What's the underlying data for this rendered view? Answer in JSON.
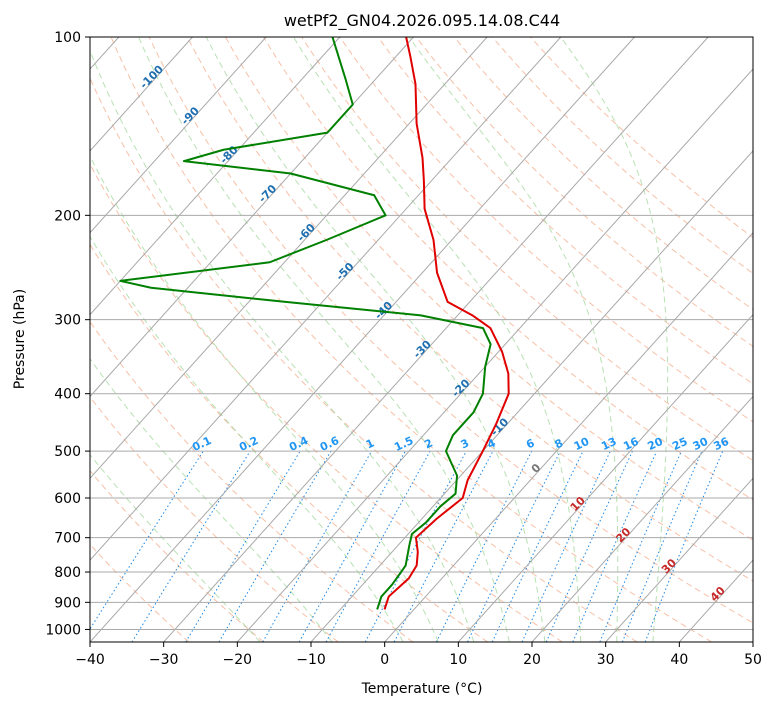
{
  "chart_data": {
    "type": "skewt",
    "title": "wetPf2_GN04.2026.095.14.08.C44",
    "xlabel": "Temperature (°C)",
    "ylabel": "Pressure (hPa)",
    "xlim": [
      -40,
      50
    ],
    "ylim": [
      1050,
      100
    ],
    "x_ticks": [
      -40,
      -30,
      -20,
      -10,
      0,
      10,
      20,
      30,
      40,
      50
    ],
    "x_tick_labels": [
      "−40",
      "−30",
      "−20",
      "−10",
      "0",
      "10",
      "20",
      "30",
      "40",
      "50"
    ],
    "y_ticks": [
      1000,
      900,
      800,
      700,
      600,
      500,
      400,
      300,
      200,
      100
    ],
    "y_tick_labels": [
      "1000",
      "900",
      "800",
      "700",
      "600",
      "500",
      "400",
      "300",
      "200",
      "100"
    ],
    "grid": true,
    "colors": {
      "temperature": "#e00000",
      "dewpoint": "#008000",
      "isotherm": "#a9a9a9",
      "dry_adiabat": "#f4a582",
      "moist_adiabat": "#a6d9a0",
      "mixing_ratio": "#1e88e5",
      "isotherm_label": "#1f6fb0",
      "red_label": "#c62828",
      "zero_label": "#777777",
      "mixing_label": "#2196f3"
    },
    "series": [
      {
        "name": "Temperature",
        "points": [
          {
            "p": 925,
            "t": -4.0
          },
          {
            "p": 880,
            "t": -5.0
          },
          {
            "p": 820,
            "t": -4.5
          },
          {
            "p": 780,
            "t": -5.0
          },
          {
            "p": 740,
            "t": -6.5
          },
          {
            "p": 700,
            "t": -8.5
          },
          {
            "p": 650,
            "t": -8.0
          },
          {
            "p": 600,
            "t": -7.0
          },
          {
            "p": 560,
            "t": -8.5
          },
          {
            "p": 500,
            "t": -10.0
          },
          {
            "p": 450,
            "t": -11.5
          },
          {
            "p": 400,
            "t": -13.5
          },
          {
            "p": 370,
            "t": -16.0
          },
          {
            "p": 340,
            "t": -19.5
          },
          {
            "p": 310,
            "t": -24.0
          },
          {
            "p": 295,
            "t": -28.0
          },
          {
            "p": 280,
            "t": -33.0
          },
          {
            "p": 250,
            "t": -38.0
          },
          {
            "p": 220,
            "t": -42.5
          },
          {
            "p": 195,
            "t": -47.5
          },
          {
            "p": 175,
            "t": -51.0
          },
          {
            "p": 160,
            "t": -54.0
          },
          {
            "p": 140,
            "t": -59.0
          },
          {
            "p": 120,
            "t": -64.0
          },
          {
            "p": 108,
            "t": -68.0
          },
          {
            "p": 100,
            "t": -71.0
          }
        ]
      },
      {
        "name": "Dewpoint",
        "points": [
          {
            "p": 925,
            "t": -5.0
          },
          {
            "p": 880,
            "t": -6.0
          },
          {
            "p": 840,
            "t": -6.0
          },
          {
            "p": 780,
            "t": -6.5
          },
          {
            "p": 720,
            "t": -8.5
          },
          {
            "p": 690,
            "t": -9.5
          },
          {
            "p": 660,
            "t": -9.0
          },
          {
            "p": 620,
            "t": -9.0
          },
          {
            "p": 590,
            "t": -8.5
          },
          {
            "p": 550,
            "t": -10.5
          },
          {
            "p": 500,
            "t": -15.0
          },
          {
            "p": 470,
            "t": -16.0
          },
          {
            "p": 430,
            "t": -16.0
          },
          {
            "p": 400,
            "t": -17.0
          },
          {
            "p": 360,
            "t": -20.0
          },
          {
            "p": 330,
            "t": -22.0
          },
          {
            "p": 310,
            "t": -25.0
          },
          {
            "p": 295,
            "t": -35.0
          },
          {
            "p": 280,
            "t": -55.0
          },
          {
            "p": 265,
            "t": -75.0
          },
          {
            "p": 258,
            "t": -80.0
          },
          {
            "p": 240,
            "t": -62.0
          },
          {
            "p": 220,
            "t": -57.0
          },
          {
            "p": 200,
            "t": -52.0
          },
          {
            "p": 185,
            "t": -56.0
          },
          {
            "p": 170,
            "t": -70.0
          },
          {
            "p": 162,
            "t": -86.0
          },
          {
            "p": 155,
            "t": -82.0
          },
          {
            "p": 145,
            "t": -70.0
          },
          {
            "p": 130,
            "t": -70.0
          },
          {
            "p": 118,
            "t": -74.0
          },
          {
            "p": 100,
            "t": -81.0
          }
        ]
      }
    ],
    "isotherms": [
      -120,
      -110,
      -100,
      -90,
      -80,
      -70,
      -60,
      -50,
      -40,
      -30,
      -20,
      -10,
      0,
      10,
      20,
      30,
      40,
      50
    ],
    "isotherm_labels": [
      {
        "t": -100,
        "label": "-100"
      },
      {
        "t": -90,
        "label": "-90"
      },
      {
        "t": -80,
        "label": "-80"
      },
      {
        "t": -70,
        "label": "-70"
      },
      {
        "t": -60,
        "label": "-60"
      },
      {
        "t": -50,
        "label": "-50"
      },
      {
        "t": -40,
        "label": "-40"
      },
      {
        "t": -30,
        "label": "-30"
      },
      {
        "t": -20,
        "label": "-20"
      },
      {
        "t": -10,
        "label": "-10"
      }
    ],
    "red_labels": [
      {
        "t": 10,
        "label": "10"
      },
      {
        "t": 20,
        "label": "20"
      },
      {
        "t": 30,
        "label": "30"
      },
      {
        "t": 40,
        "label": "40"
      }
    ],
    "zero_label": {
      "t": 0,
      "label": "0"
    },
    "dry_adiabats_theta_c": [
      -30,
      -20,
      -10,
      0,
      10,
      20,
      30,
      40,
      50,
      60,
      70,
      80,
      90,
      100,
      110,
      120,
      130,
      140,
      150
    ],
    "moist_adiabats_theta_c": [
      -20,
      -10,
      0,
      5,
      10,
      15,
      20,
      25,
      30,
      35
    ],
    "mixing_ratios": [
      0.1,
      0.2,
      0.4,
      0.6,
      1,
      1.5,
      2,
      3,
      4,
      6,
      8,
      10,
      13,
      16,
      20,
      25,
      30,
      36
    ],
    "mixing_ratio_labels": [
      "0.1",
      "0.2",
      "0.4",
      "0.6",
      "1",
      "1.5",
      "2",
      "3",
      "4",
      "6",
      "8",
      "10",
      "13",
      "16",
      "20",
      "25",
      "30",
      "36"
    ],
    "mixing_label_pressure": 500
  }
}
